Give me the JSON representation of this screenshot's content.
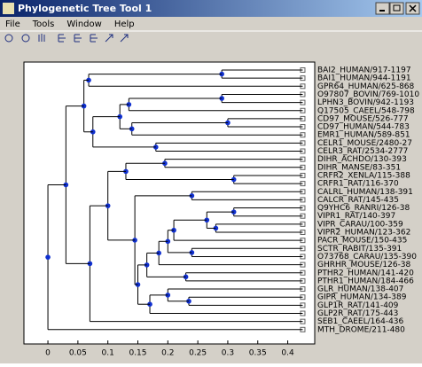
{
  "window": {
    "title": "Phylogenetic Tree Tool 1",
    "menu": [
      "File",
      "Tools",
      "Window",
      "Help"
    ]
  },
  "chart_data": {
    "type": "tree",
    "xlim": [
      -0.04,
      0.445
    ],
    "xticks": [
      0,
      0.05,
      0.1,
      0.15,
      0.2,
      0.25,
      0.3,
      0.35,
      0.4
    ],
    "leaf_x": 0.425,
    "line_color": "#000000",
    "node_color": "#1030d0",
    "tree": {
      "x": 0,
      "children": [
        {
          "x": 0.03,
          "children": [
            {
              "x": 0.06,
              "children": [
                {
                  "x": 0.068,
                  "children": [
                    {
                      "x": 0.29,
                      "children": [
                        "BAI2_HUMAN/917-1197",
                        "BAI1_HUMAN/944-1191"
                      ]
                    },
                    "GPR64_HUMAN/625-868"
                  ]
                },
                {
                  "x": 0.075,
                  "children": [
                    {
                      "x": 0.12,
                      "children": [
                        {
                          "x": 0.135,
                          "children": [
                            {
                              "x": 0.29,
                              "children": [
                                "O97807_BOVIN/769-1010",
                                "LPHN3_BOVIN/942-1193"
                              ]
                            },
                            "Q17505_CAEEL/548-798"
                          ]
                        },
                        {
                          "x": 0.14,
                          "children": [
                            {
                              "x": 0.3,
                              "children": [
                                "CD97_MOUSE/526-777",
                                "CD97_HUMAN/544-783"
                              ]
                            },
                            "EMR1_HUMAN/589-851"
                          ]
                        }
                      ]
                    },
                    {
                      "x": 0.18,
                      "children": [
                        "CELR1_MOUSE/2480-27",
                        "CELR3_RAT/2534-2777"
                      ]
                    }
                  ]
                }
              ]
            },
            {
              "x": 0.07,
              "children": [
                {
                  "x": 0.1,
                  "children": [
                    {
                      "x": 0.13,
                      "children": [
                        {
                          "x": 0.195,
                          "children": [
                            "DIHR_ACHDO/130-393",
                            "DIHR_MANSE/83-351"
                          ]
                        },
                        {
                          "x": 0.31,
                          "children": [
                            "CRFR2_XENLA/115-388",
                            "CRFR1_RAT/116-370"
                          ]
                        }
                      ]
                    },
                    {
                      "x": 0.145,
                      "children": [
                        {
                          "x": 0.24,
                          "children": [
                            "CALRL_HUMAN/138-391",
                            "CALCR_RAT/145-435"
                          ]
                        },
                        {
                          "x": 0.15,
                          "children": [
                            {
                              "x": 0.165,
                              "children": [
                                {
                                  "x": 0.185,
                                  "children": [
                                    {
                                      "x": 0.2,
                                      "children": [
                                        {
                                          "x": 0.21,
                                          "children": [
                                            {
                                              "x": 0.265,
                                              "children": [
                                                {
                                                  "x": 0.31,
                                                  "children": [
                                                    "Q9YHC6_RANRI/126-38",
                                                    "VIPR1_RAT/140-397"
                                                  ]
                                                },
                                                {
                                                  "x": 0.28,
                                                  "children": [
                                                    "VIPR_CARAU/100-359",
                                                    "VIPR2_HUMAN/123-362"
                                                  ]
                                                }
                                              ]
                                            },
                                            "PACR_MOUSE/150-435"
                                          ]
                                        },
                                        {
                                          "x": 0.24,
                                          "children": [
                                            "SCTR_RABIT/135-391",
                                            "O73768_CARAU/135-390"
                                          ]
                                        }
                                      ]
                                    },
                                    "GHRHR_MOUSE/126-38"
                                  ]
                                },
                                {
                                  "x": 0.23,
                                  "children": [
                                    "PTHR2_HUMAN/141-420",
                                    "PTHR1_HUMAN/184-466"
                                  ]
                                }
                              ]
                            },
                            {
                              "x": 0.17,
                              "children": [
                                {
                                  "x": 0.2,
                                  "children": [
                                    "GLR_HUMAN/138-407",
                                    {
                                      "x": 0.235,
                                      "children": [
                                        "GIPR_HUMAN/134-389",
                                        "GLP1R_RAT/141-409"
                                      ]
                                    }
                                  ]
                                },
                                "GLP2R_RAT/175-443"
                              ]
                            }
                          ]
                        }
                      ]
                    }
                  ]
                },
                "SEB1_CAEEL/164-436"
              ]
            }
          ]
        },
        "MTH_DROME/211-480"
      ]
    }
  }
}
